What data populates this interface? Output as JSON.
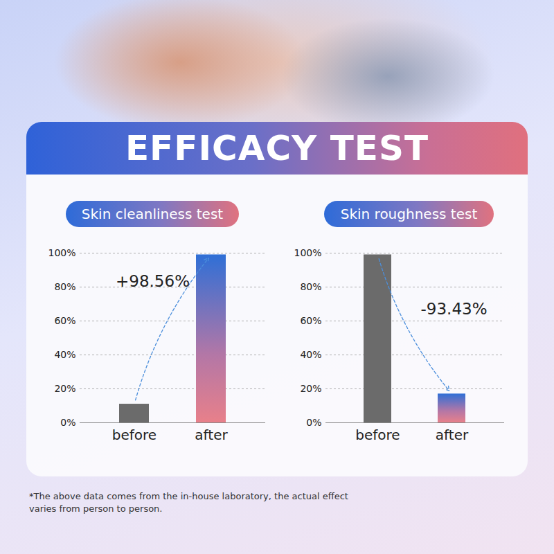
{
  "title": "EFFICACY TEST",
  "chart_data": [
    {
      "type": "bar",
      "title": "Skin cleanliness test",
      "categories": [
        "before",
        "after"
      ],
      "values": [
        11,
        99
      ],
      "colors": [
        "#6b6b6b",
        "#2f6fd6"
      ],
      "ylim": [
        0,
        100
      ],
      "yticks": [
        {
          "value": 0,
          "label": "0%"
        },
        {
          "value": 20,
          "label": "20%"
        },
        {
          "value": 40,
          "label": "40%"
        },
        {
          "value": 60,
          "label": "60%"
        },
        {
          "value": 80,
          "label": "80%"
        },
        {
          "value": 100,
          "label": "100%"
        }
      ],
      "grid": true,
      "annotations": [
        "+98.56%"
      ]
    },
    {
      "type": "bar",
      "title": "Skin roughness test",
      "categories": [
        "before",
        "after"
      ],
      "values": [
        99,
        17
      ],
      "colors": [
        "#6b6b6b",
        "#2f6fd6"
      ],
      "ylim": [
        0,
        100
      ],
      "yticks": [
        {
          "value": 0,
          "label": "0%"
        },
        {
          "value": 20,
          "label": "20%"
        },
        {
          "value": 40,
          "label": "40%"
        },
        {
          "value": 60,
          "label": "60%"
        },
        {
          "value": 80,
          "label": "80%"
        },
        {
          "value": 100,
          "label": "100%"
        }
      ],
      "grid": true,
      "annotations": [
        "-93.43%"
      ]
    }
  ],
  "footnote": "*The above data comes from the in-house laboratory, the actual effect varies from person to person."
}
